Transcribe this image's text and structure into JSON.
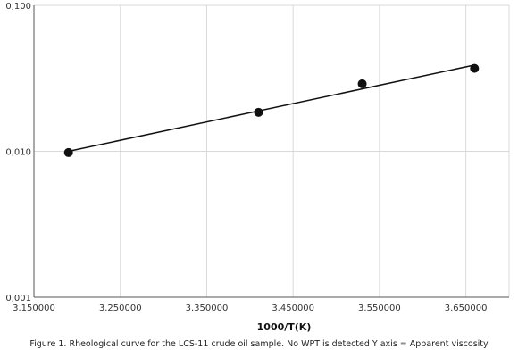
{
  "chart_data": {
    "type": "scatter",
    "x": [
      3.19,
      3.41,
      3.53,
      3.66
    ],
    "y": [
      0.0098,
      0.0185,
      0.029,
      0.037
    ],
    "trendline": {
      "x": [
        3.19,
        3.66
      ],
      "y": [
        0.01,
        0.039
      ]
    },
    "xlabel": "1000/T(K)",
    "ylabel": "",
    "xlim": [
      3.15,
      3.7
    ],
    "ylim": [
      0.001,
      0.1
    ],
    "y_scale": "log",
    "x_ticks": [
      3.15,
      3.25,
      3.35,
      3.45,
      3.55,
      3.65
    ],
    "x_tick_labels": [
      "3.150000",
      "3.250000",
      "3.350000",
      "3.450000",
      "3.550000",
      "3.650000"
    ],
    "y_ticks": [
      0.001,
      0.01,
      0.1
    ],
    "y_tick_labels": [
      "0,001",
      "0,010",
      "0,100"
    ],
    "grid": true,
    "colors": {
      "points": "#111111",
      "line": "#111111",
      "grid": "#d9d9d9",
      "axis": "#555555"
    }
  },
  "caption": "Figure 1. Rheological curve for the LCS-11 crude oil sample. No WPT is detected Y axis = Apparent viscosity"
}
